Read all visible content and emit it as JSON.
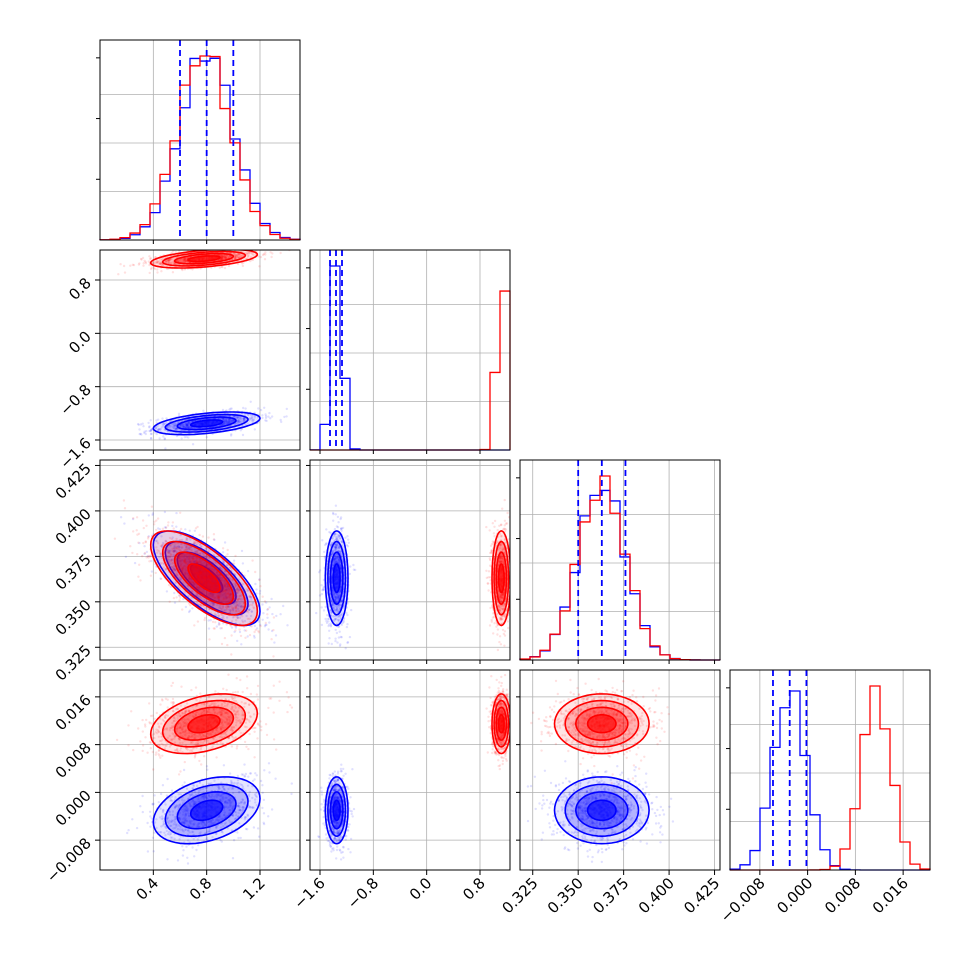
{
  "chart_data": {
    "type": "corner",
    "parameters": [
      {
        "range": [
          0.0,
          1.5
        ],
        "ticks": [
          0.4,
          0.8,
          1.2
        ],
        "tick_labels": [
          "0.4",
          "0.8",
          "1.2"
        ]
      },
      {
        "range": [
          -1.75,
          1.25
        ],
        "ticks": [
          -1.6,
          -0.8,
          0.0,
          0.8
        ],
        "tick_labels": [
          "−1.6",
          "−0.8",
          "0.0",
          "0.8"
        ]
      },
      {
        "range": [
          0.318,
          0.428
        ],
        "ticks": [
          0.325,
          0.35,
          0.375,
          0.4,
          0.425
        ],
        "tick_labels": [
          "0.325",
          "0.350",
          "0.375",
          "0.400",
          "0.425"
        ]
      },
      {
        "range": [
          -0.013,
          0.0205
        ],
        "ticks": [
          -0.008,
          0.0,
          0.008,
          0.016
        ],
        "tick_labels": [
          "−0.008",
          "0.000",
          "0.008",
          "0.016"
        ]
      }
    ],
    "series": [
      {
        "color": "#0000ff",
        "means": [
          0.8,
          -1.35,
          0.363,
          -0.003
        ],
        "sds": [
          0.2,
          0.085,
          0.013,
          0.0028
        ],
        "quantiles": [
          [
            0.6,
            0.8,
            1.0
          ],
          [
            -1.45,
            -1.36,
            -1.27
          ],
          [
            0.35,
            0.363,
            0.376
          ],
          [
            -0.0058,
            -0.003,
            -0.0002
          ]
        ]
      },
      {
        "color": "#ff0000",
        "means": [
          0.78,
          1.12,
          0.363,
          0.0115
        ],
        "sds": [
          0.2,
          0.07,
          0.013,
          0.0025
        ]
      }
    ],
    "pairs": [
      {
        "row": 1,
        "col": 0,
        "rho": [
          0.45,
          0.45
        ]
      },
      {
        "row": 2,
        "col": 0,
        "rho": [
          -0.7,
          -0.7
        ]
      },
      {
        "row": 2,
        "col": 1,
        "rho": [
          0.0,
          0.0
        ]
      },
      {
        "row": 3,
        "col": 0,
        "rho": [
          0.35,
          0.35
        ]
      },
      {
        "row": 3,
        "col": 1,
        "rho": [
          0.0,
          0.0
        ]
      },
      {
        "row": 3,
        "col": 2,
        "rho": [
          0.0,
          0.0
        ]
      }
    ],
    "grid": true
  }
}
